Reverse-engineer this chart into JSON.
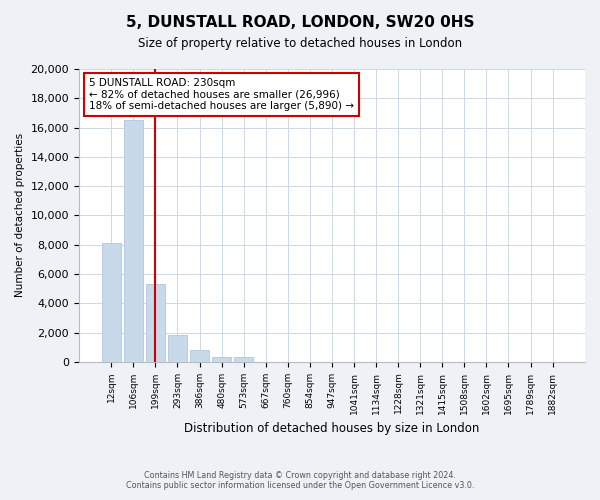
{
  "title": "5, DUNSTALL ROAD, LONDON, SW20 0HS",
  "subtitle": "Size of property relative to detached houses in London",
  "xlabel": "Distribution of detached houses by size in London",
  "ylabel": "Number of detached properties",
  "bar_color": "#c8daea",
  "bar_edge_color": "#b0c8de",
  "annotation_line_color": "#cc0000",
  "annotation_box_edge_color": "#cc0000",
  "annotation_text_line1": "5 DUNSTALL ROAD: 230sqm",
  "annotation_text_line2": "← 82% of detached houses are smaller (26,996)",
  "annotation_text_line3": "18% of semi-detached houses are larger (5,890) →",
  "x_labels": [
    "12sqm",
    "106sqm",
    "199sqm",
    "293sqm",
    "386sqm",
    "480sqm",
    "573sqm",
    "667sqm",
    "760sqm",
    "854sqm",
    "947sqm",
    "1041sqm",
    "1134sqm",
    "1228sqm",
    "1321sqm",
    "1415sqm",
    "1508sqm",
    "1602sqm",
    "1695sqm",
    "1789sqm",
    "1882sqm"
  ],
  "bar_heights": [
    8100,
    16500,
    5300,
    1800,
    800,
    300,
    300,
    0,
    0,
    0,
    0,
    0,
    0,
    0,
    0,
    0,
    0,
    0,
    0,
    0,
    0
  ],
  "ylim": [
    0,
    20000
  ],
  "yticks": [
    0,
    2000,
    4000,
    6000,
    8000,
    10000,
    12000,
    14000,
    16000,
    18000,
    20000
  ],
  "footer_line1": "Contains HM Land Registry data © Crown copyright and database right 2024.",
  "footer_line2": "Contains public sector information licensed under the Open Government Licence v3.0.",
  "bg_color": "#eef2f6",
  "plot_bg_color": "#ffffff",
  "grid_color": "#ccd8e4"
}
